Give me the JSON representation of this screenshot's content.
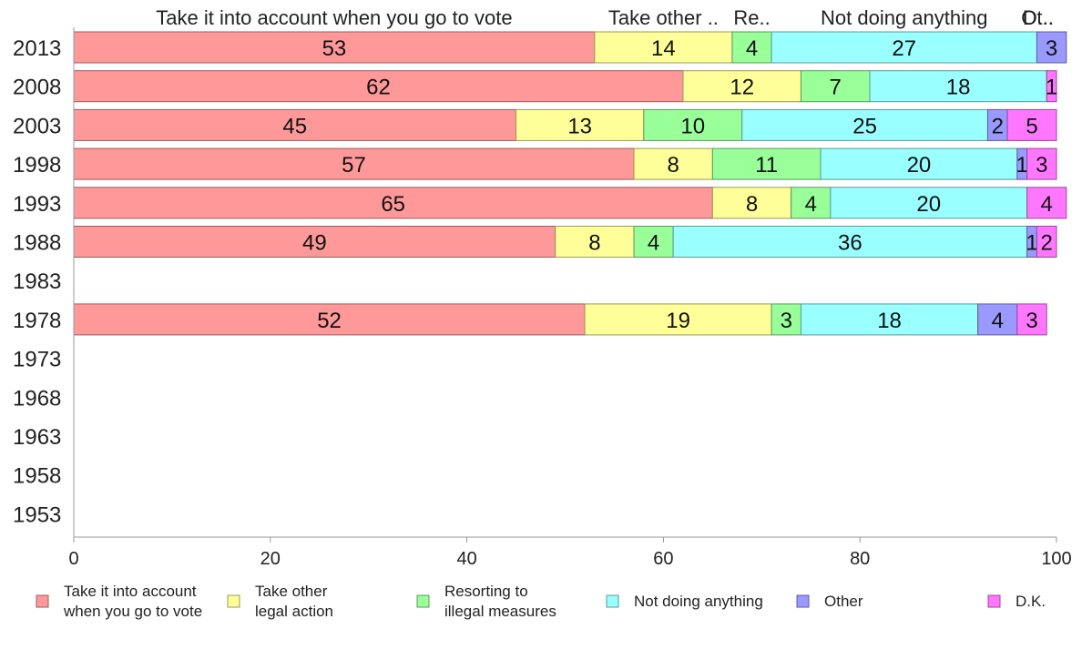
{
  "chart_data": {
    "type": "bar",
    "orientation": "horizontal",
    "stacked": true,
    "categories": [
      "2013",
      "2008",
      "2003",
      "1998",
      "1993",
      "1988",
      "1983",
      "1978",
      "1973",
      "1968",
      "1963",
      "1958",
      "1953"
    ],
    "series": [
      {
        "name": "Take it into account when you go to vote",
        "color": "#ff9999",
        "values": [
          53,
          62,
          45,
          57,
          65,
          49,
          null,
          52,
          null,
          null,
          null,
          null,
          null
        ]
      },
      {
        "name": "Take other legal action",
        "color": "#ffff99",
        "values": [
          14,
          12,
          13,
          8,
          8,
          8,
          null,
          19,
          null,
          null,
          null,
          null,
          null
        ]
      },
      {
        "name": "Resorting to illegal measures",
        "color": "#99ff99",
        "values": [
          4,
          7,
          10,
          11,
          4,
          4,
          null,
          3,
          null,
          null,
          null,
          null,
          null
        ]
      },
      {
        "name": "Not doing anything",
        "color": "#99ffff",
        "values": [
          27,
          18,
          25,
          20,
          20,
          36,
          null,
          18,
          null,
          null,
          null,
          null,
          null
        ]
      },
      {
        "name": "Other",
        "color": "#9999ff",
        "values": [
          3,
          0,
          2,
          1,
          0,
          1,
          null,
          4,
          null,
          null,
          null,
          null,
          null
        ]
      },
      {
        "name": "D.K.",
        "color": "#ff77ff",
        "values": [
          0,
          1,
          5,
          3,
          4,
          2,
          null,
          3,
          null,
          null,
          null,
          null,
          null
        ]
      }
    ],
    "legend_labels": [
      [
        "Take it into account",
        "when you go to vote"
      ],
      [
        "Take other",
        "legal action"
      ],
      [
        "Resorting to",
        "illegal measures"
      ],
      [
        "Not doing anything"
      ],
      [
        "Other"
      ],
      [
        "D.K."
      ]
    ],
    "top_labels": [
      "Take it into account when you go to vote",
      "Take other ..",
      "Re..",
      "Not doing anything",
      "Ot..",
      "D..."
    ],
    "xlim": [
      0,
      100
    ],
    "xticks": [
      0,
      20,
      40,
      60,
      80,
      100
    ],
    "legend_position": "bottom",
    "grid": false
  }
}
